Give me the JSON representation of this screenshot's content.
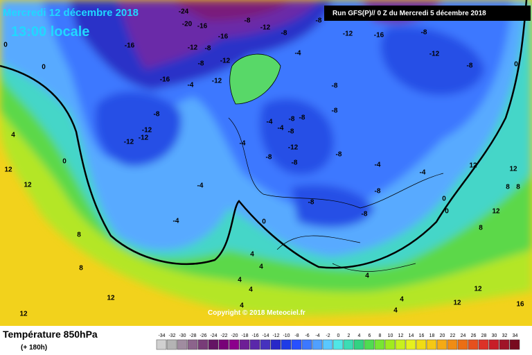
{
  "header": {
    "date": "Mercredi 12 décembre 2018",
    "time": "13:00 locale",
    "run": "Run GFS(P)// 0 Z du Mercredi 5 décembre 2018"
  },
  "copyright": "Copyright © 2018 Meteociel.fr",
  "footer": {
    "parameter": "Température 850hPa",
    "lead": "(+ 180h)"
  },
  "scale": {
    "values": [
      -34,
      -32,
      -30,
      -28,
      -26,
      -24,
      -22,
      -20,
      -18,
      -16,
      -14,
      -12,
      -10,
      -8,
      -6,
      -4,
      -2,
      0,
      2,
      4,
      6,
      8,
      10,
      12,
      14,
      16,
      18,
      20,
      22,
      24,
      26,
      28,
      30,
      32,
      34
    ],
    "colors": [
      "#d0d0d0",
      "#b4b4b4",
      "#a08ca0",
      "#8c648c",
      "#783c78",
      "#641464",
      "#780078",
      "#8c008c",
      "#6e1e96",
      "#5a28aa",
      "#4632be",
      "#2828c8",
      "#1e3ce6",
      "#2850ff",
      "#3c78ff",
      "#50a0ff",
      "#5ac8ff",
      "#50e6e6",
      "#3cdcb4",
      "#32d282",
      "#50dc50",
      "#78e632",
      "#a0eb1e",
      "#c8f01e",
      "#e6f01e",
      "#f0dc14",
      "#f5c814",
      "#f5aa14",
      "#f08c14",
      "#eb6e14",
      "#e6501e",
      "#dc3228",
      "#c81e28",
      "#a01428",
      "#780a1e"
    ]
  },
  "contour_labels": [
    -24,
    -20,
    -16,
    -8,
    -16,
    -12,
    -12,
    -8,
    -12,
    -8,
    -16,
    -4,
    -12,
    -16,
    -8,
    -12,
    -12,
    -12,
    -8,
    -4,
    -8,
    -12,
    -16,
    -8,
    -12,
    -8,
    -8,
    -8,
    -4,
    -4,
    -8,
    -8,
    -8,
    -12,
    -8,
    -4,
    -8,
    -8,
    -4,
    -4,
    -8,
    -8,
    -8,
    -4,
    -4,
    0,
    0,
    0,
    12,
    12,
    8,
    12,
    12,
    8,
    4,
    4,
    4,
    4,
    4,
    4,
    4,
    4,
    12,
    12,
    16,
    12,
    12,
    8,
    8,
    8,
    12,
    0,
    0,
    0,
    0,
    4
  ]
}
